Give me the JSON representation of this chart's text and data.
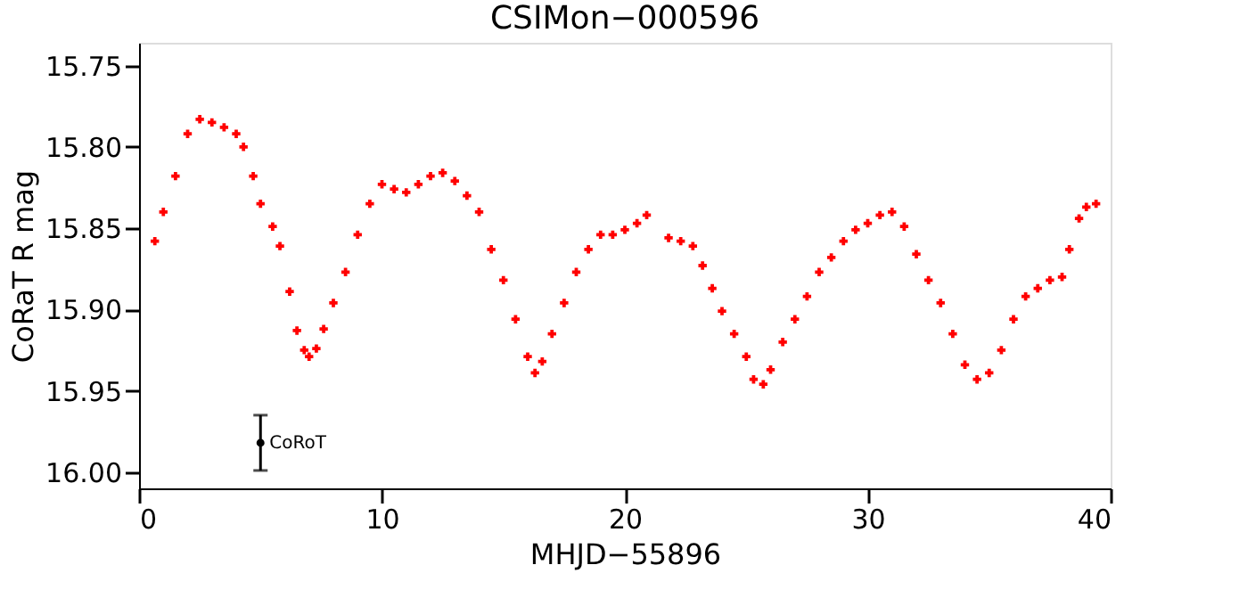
{
  "chart_data": {
    "type": "scatter",
    "title": "CSIMon−000596",
    "xlabel": "MHJD−55896",
    "ylabel": "CoRaT R mag",
    "xlim": [
      0,
      40
    ],
    "xticks": [
      0,
      10,
      20,
      30,
      40
    ],
    "ylim": [
      16.01,
      15.736
    ],
    "yticks": [
      15.75,
      {
        "value": 15.8,
        "label": "15.80"
      },
      15.85,
      {
        "value": 15.9,
        "label": "15.90"
      },
      15.95,
      {
        "value": 16.0,
        "label": "16.00"
      }
    ],
    "grid": false,
    "legend": false,
    "marker": "cross",
    "series": [
      {
        "color": "#ff0000",
        "x": [
          0.65,
          1.0,
          1.5,
          2.0,
          2.5,
          3.0,
          3.5,
          4.0,
          4.3,
          4.7,
          5.0,
          5.5,
          5.8,
          6.2,
          6.5,
          6.8,
          7.0,
          7.3,
          7.6,
          8.0,
          8.5,
          9.0,
          9.5,
          10.0,
          10.5,
          11.0,
          11.5,
          12.0,
          12.5,
          13.0,
          13.5,
          14.0,
          14.5,
          15.0,
          15.5,
          16.0,
          16.3,
          16.6,
          17.0,
          17.5,
          18.0,
          18.5,
          19.0,
          19.5,
          20.0,
          20.5,
          20.9,
          21.8,
          22.3,
          22.8,
          23.2,
          23.6,
          24.0,
          24.5,
          25.0,
          25.3,
          25.7,
          26.0,
          26.5,
          27.0,
          27.5,
          28.0,
          28.5,
          29.0,
          29.5,
          30.0,
          30.5,
          31.0,
          31.5,
          32.0,
          32.5,
          33.0,
          33.5,
          34.0,
          34.5,
          35.0,
          35.5,
          36.0,
          36.5,
          37.0,
          37.5,
          38.0,
          38.3,
          38.7,
          39.0,
          39.4
        ],
        "values": [
          15.858,
          15.84,
          15.818,
          15.792,
          15.783,
          15.785,
          15.788,
          15.792,
          15.8,
          15.818,
          15.835,
          15.849,
          15.861,
          15.889,
          15.913,
          15.925,
          15.929,
          15.924,
          15.912,
          15.896,
          15.877,
          15.854,
          15.835,
          15.823,
          15.826,
          15.828,
          15.823,
          15.818,
          15.816,
          15.821,
          15.83,
          15.84,
          15.863,
          15.882,
          15.906,
          15.929,
          15.939,
          15.932,
          15.915,
          15.896,
          15.877,
          15.863,
          15.854,
          15.854,
          15.851,
          15.847,
          15.842,
          15.856,
          15.858,
          15.861,
          15.873,
          15.887,
          15.901,
          15.915,
          15.929,
          15.943,
          15.946,
          15.937,
          15.92,
          15.906,
          15.892,
          15.877,
          15.868,
          15.858,
          15.851,
          15.847,
          15.842,
          15.84,
          15.849,
          15.866,
          15.882,
          15.896,
          15.915,
          15.934,
          15.943,
          15.939,
          15.925,
          15.906,
          15.892,
          15.887,
          15.882,
          15.88,
          15.863,
          15.844,
          15.837,
          15.835
        ]
      },
      {
        "name": "CoRoT",
        "color": "#000000",
        "marker": "circle",
        "x": [
          5
        ],
        "values": [
          15.982
        ],
        "errors": [
          0.017
        ]
      }
    ]
  }
}
